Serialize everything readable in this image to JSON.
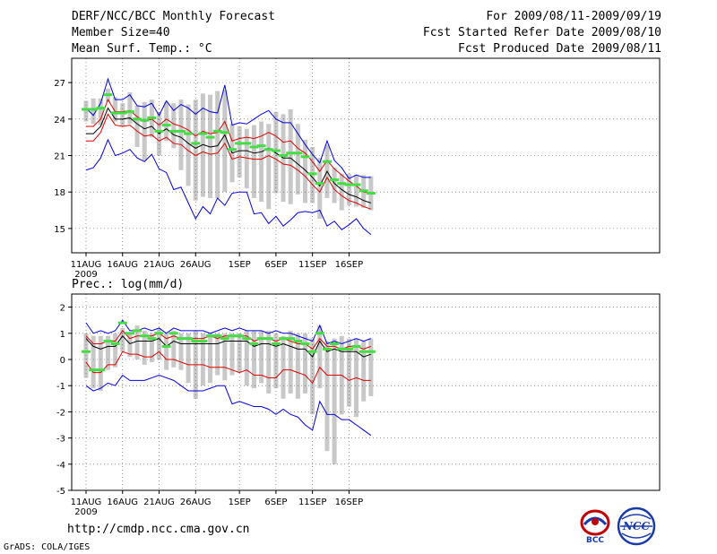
{
  "header": {
    "title": "DERF/NCC/BCC Monthly Forecast",
    "member_size": "Member Size=40",
    "variable": "Mean Surf. Temp.: °C",
    "period": "For 2009/08/11-2009/09/19",
    "refer_date": "Fcst Started Refer Date 2009/08/10",
    "produced_date": "Fcst Produced Date 2009/08/11"
  },
  "footer": {
    "url": "http://cmdp.ncc.cma.gov.cn",
    "credit": "GrADS: COLA/IGES",
    "logo_bcc": "BCC",
    "logo_ncc": "NCC"
  },
  "chart_data": [
    {
      "type": "line",
      "title": "Mean Surf. Temp.: °C",
      "ylabel": "°C",
      "ylim": [
        13,
        29
      ],
      "yticks": [
        15,
        18,
        21,
        24,
        27
      ],
      "x": [
        0,
        1,
        2,
        3,
        4,
        5,
        6,
        7,
        8,
        9,
        10,
        11,
        12,
        13,
        14,
        15,
        16,
        17,
        18,
        19,
        20,
        21,
        22,
        23,
        24,
        25,
        26,
        27,
        28,
        29,
        30,
        31,
        32,
        33,
        34,
        35,
        36,
        37,
        38,
        39
      ],
      "xticks": [
        {
          "x": 0,
          "label": "11AUG"
        },
        {
          "x": 5,
          "label": "16AUG"
        },
        {
          "x": 10,
          "label": "21AUG"
        },
        {
          "x": 15,
          "label": "26AUG"
        },
        {
          "x": 21,
          "label": "1SEP"
        },
        {
          "x": 26,
          "label": "6SEP"
        },
        {
          "x": 31,
          "label": "11SEP"
        },
        {
          "x": 36,
          "label": "16SEP"
        }
      ],
      "year_label": "2009",
      "series": [
        {
          "name": "max",
          "color": "#0000dd",
          "values": [
            19.8,
            20.0,
            20.8,
            22.3,
            21.0,
            21.2,
            21.5,
            20.8,
            20.5,
            21.1,
            19.9,
            19.6,
            18.2,
            18.4,
            17.1,
            15.8,
            16.8,
            16.2,
            17.5,
            16.9,
            17.9,
            18.0,
            18.0,
            16.2,
            16.3,
            15.4,
            16.0,
            15.2,
            15.7,
            16.3,
            16.4,
            16.3,
            16.5,
            15.2,
            15.6,
            14.9,
            15.3,
            15.8,
            15.0,
            14.5
          ]
        },
        {
          "name": "min",
          "color": "#0000dd",
          "values": [
            24.9,
            24.3,
            25.3,
            27.3,
            25.6,
            25.6,
            26.0,
            25.1,
            25.0,
            25.3,
            24.3,
            25.5,
            24.7,
            25.2,
            24.9,
            24.4,
            24.9,
            24.6,
            24.5,
            26.8,
            23.5,
            23.7,
            23.6,
            24.0,
            24.4,
            24.7,
            24.0,
            23.7,
            23.7,
            22.8,
            21.9,
            21.1,
            20.4,
            22.2,
            20.6,
            20.0,
            19.1,
            19.4,
            19.2,
            19.2
          ]
        },
        {
          "name": "upper",
          "color": "#dd0000",
          "values": [
            23.4,
            23.4,
            24.0,
            25.6,
            24.6,
            24.6,
            24.7,
            24.2,
            23.8,
            24.0,
            23.5,
            24.0,
            23.6,
            23.4,
            23.1,
            22.6,
            23.0,
            22.8,
            22.9,
            23.8,
            22.2,
            22.4,
            22.5,
            22.4,
            22.6,
            22.9,
            22.6,
            22.1,
            22.2,
            21.6,
            21.2,
            20.5,
            19.7,
            20.6,
            19.9,
            19.4,
            18.9,
            18.5,
            18.0,
            17.9
          ]
        },
        {
          "name": "mean",
          "color": "#000000",
          "values": [
            22.8,
            22.8,
            23.4,
            24.9,
            24.0,
            24.0,
            24.1,
            23.6,
            23.2,
            23.4,
            22.8,
            23.2,
            22.7,
            22.5,
            22.0,
            21.6,
            21.9,
            21.7,
            21.8,
            22.7,
            21.2,
            21.4,
            21.4,
            21.2,
            21.3,
            21.6,
            21.2,
            20.8,
            20.8,
            20.3,
            19.8,
            19.2,
            18.5,
            19.7,
            18.7,
            18.2,
            17.8,
            17.6,
            17.3,
            17.1
          ]
        },
        {
          "name": "lower",
          "color": "#dd0000",
          "values": [
            22.2,
            22.2,
            22.9,
            24.4,
            23.5,
            23.4,
            23.5,
            23.0,
            22.6,
            22.7,
            22.2,
            22.5,
            22.0,
            21.9,
            21.4,
            21.0,
            21.3,
            21.1,
            21.2,
            22.0,
            20.7,
            20.9,
            20.8,
            20.7,
            20.7,
            21.0,
            20.7,
            20.3,
            20.2,
            19.8,
            19.3,
            18.6,
            18.0,
            19.2,
            18.2,
            17.7,
            17.3,
            17.1,
            16.8,
            16.6
          ]
        },
        {
          "name": "box_low",
          "color": "#c8c8c8",
          "values": [
            23.8,
            23.6,
            23.5,
            25.4,
            23.8,
            23.4,
            23.6,
            21.7,
            20.6,
            22.5,
            21.0,
            22.2,
            21.6,
            19.8,
            18.5,
            17.3,
            17.6,
            17.5,
            17.5,
            18.0,
            18.8,
            19.2,
            18.3,
            17.5,
            17.2,
            16.6,
            17.9,
            17.2,
            17.0,
            17.8,
            17.1,
            17.1,
            15.8,
            17.5,
            17.1,
            16.5,
            16.9,
            16.8,
            16.7,
            16.5
          ]
        },
        {
          "name": "box_high",
          "color": "#c8c8c8",
          "values": [
            25.5,
            25.7,
            25.7,
            26.5,
            25.8,
            25.3,
            26.2,
            25.1,
            25.4,
            25.6,
            24.6,
            25.4,
            25.3,
            25.6,
            25.2,
            25.6,
            26.1,
            26.0,
            26.3,
            26.4,
            23.6,
            23.4,
            23.2,
            23.5,
            23.8,
            23.6,
            24.6,
            24.4,
            24.8,
            23.6,
            22.3,
            21.7,
            20.8,
            21.9,
            20.0,
            19.5,
            19.5,
            19.4,
            19.4,
            19.3
          ]
        },
        {
          "name": "observed",
          "color": "#44dd44",
          "values": [
            24.8,
            24.8,
            24.9,
            26.0,
            24.5,
            24.5,
            24.6,
            24.0,
            23.9,
            24.1,
            23.0,
            23.5,
            23.0,
            23.0,
            22.8,
            22.0,
            22.8,
            22.5,
            23.0,
            22.9,
            21.5,
            22.0,
            22.0,
            21.7,
            21.8,
            21.5,
            21.4,
            21.0,
            21.2,
            21.2,
            20.9,
            19.5,
            18.7,
            20.5,
            19.0,
            18.7,
            18.6,
            18.6,
            18.1,
            17.9
          ]
        }
      ]
    },
    {
      "type": "line",
      "title": "Prec.: log(mm/d)",
      "ylabel": "log(mm/d)",
      "ylim": [
        -5,
        2.5
      ],
      "yticks": [
        2,
        1,
        0,
        -1,
        -2,
        -3,
        -4,
        -5
      ],
      "x": [
        0,
        1,
        2,
        3,
        4,
        5,
        6,
        7,
        8,
        9,
        10,
        11,
        12,
        13,
        14,
        15,
        16,
        17,
        18,
        19,
        20,
        21,
        22,
        23,
        24,
        25,
        26,
        27,
        28,
        29,
        30,
        31,
        32,
        33,
        34,
        35,
        36,
        37,
        38,
        39
      ],
      "xticks": [
        {
          "x": 0,
          "label": "11AUG"
        },
        {
          "x": 5,
          "label": "16AUG"
        },
        {
          "x": 10,
          "label": "21AUG"
        },
        {
          "x": 15,
          "label": "26AUG"
        },
        {
          "x": 21,
          "label": "1SEP"
        },
        {
          "x": 26,
          "label": "6SEP"
        },
        {
          "x": 31,
          "label": "11SEP"
        },
        {
          "x": 36,
          "label": "16SEP"
        }
      ],
      "year_label": "2009",
      "title_label": "Prec.: log(mm/d)",
      "series": [
        {
          "name": "max",
          "color": "#0000dd",
          "values": [
            1.4,
            1.0,
            1.1,
            1.0,
            1.1,
            1.5,
            1.1,
            1.1,
            1.2,
            1.1,
            1.2,
            1.0,
            1.2,
            1.1,
            1.1,
            1.1,
            1.1,
            1.0,
            1.1,
            1.2,
            1.1,
            1.2,
            1.1,
            1.1,
            1.1,
            1.0,
            1.1,
            1.0,
            1.0,
            0.9,
            0.8,
            0.7,
            1.3,
            0.6,
            0.7,
            0.6,
            0.7,
            0.8,
            0.7,
            0.8
          ]
        },
        {
          "name": "min",
          "color": "#0000dd",
          "values": [
            -1.0,
            -1.2,
            -1.1,
            -0.9,
            -1.0,
            -0.6,
            -0.8,
            -0.8,
            -0.8,
            -0.7,
            -0.6,
            -0.7,
            -0.8,
            -1.0,
            -1.2,
            -1.2,
            -1.2,
            -1.1,
            -1.0,
            -1.0,
            -1.7,
            -1.6,
            -1.7,
            -1.8,
            -1.8,
            -1.9,
            -2.1,
            -1.9,
            -2.1,
            -2.2,
            -2.5,
            -2.7,
            -1.6,
            -2.1,
            -2.1,
            -2.3,
            -2.3,
            -2.5,
            -2.7,
            -2.9
          ]
        },
        {
          "name": "upper",
          "color": "#dd0000",
          "values": [
            0.9,
            0.6,
            0.6,
            0.7,
            0.7,
            1.1,
            0.8,
            0.9,
            0.9,
            0.9,
            1.0,
            0.8,
            0.9,
            0.8,
            0.8,
            0.8,
            0.8,
            0.9,
            0.8,
            0.9,
            0.9,
            0.9,
            0.9,
            0.7,
            0.8,
            0.8,
            0.7,
            0.8,
            0.7,
            0.6,
            0.6,
            0.4,
            0.8,
            0.5,
            0.5,
            0.4,
            0.5,
            0.5,
            0.4,
            0.5
          ]
        },
        {
          "name": "mean",
          "color": "#000000",
          "values": [
            0.8,
            0.5,
            0.4,
            0.5,
            0.5,
            0.9,
            0.6,
            0.7,
            0.7,
            0.7,
            0.8,
            0.5,
            0.7,
            0.6,
            0.6,
            0.6,
            0.6,
            0.6,
            0.6,
            0.7,
            0.7,
            0.7,
            0.7,
            0.5,
            0.6,
            0.6,
            0.5,
            0.6,
            0.5,
            0.4,
            0.4,
            0.1,
            0.7,
            0.3,
            0.4,
            0.3,
            0.3,
            0.3,
            0.1,
            0.2
          ]
        },
        {
          "name": "lower",
          "color": "#dd0000",
          "values": [
            -0.1,
            -0.5,
            -0.5,
            -0.2,
            -0.2,
            0.3,
            0.2,
            0.2,
            0.1,
            0.1,
            0.3,
            0.0,
            0.0,
            -0.1,
            -0.2,
            -0.2,
            -0.2,
            -0.3,
            -0.3,
            -0.3,
            -0.4,
            -0.5,
            -0.4,
            -0.6,
            -0.6,
            -0.7,
            -0.7,
            -0.4,
            -0.4,
            -0.5,
            -0.6,
            -0.9,
            -0.3,
            -0.6,
            -0.6,
            -0.6,
            -0.8,
            -0.7,
            -0.8,
            -0.8
          ]
        },
        {
          "name": "box_low",
          "color": "#c8c8c8",
          "values": [
            -0.7,
            -1.1,
            -1.2,
            -0.4,
            -0.3,
            0.3,
            0.1,
            0.0,
            -0.2,
            -0.1,
            0.0,
            -0.4,
            -0.3,
            -0.4,
            -0.9,
            -1.5,
            -1.0,
            -0.9,
            -0.6,
            -0.8,
            -0.6,
            -0.5,
            -1.0,
            -1.1,
            -0.9,
            -1.3,
            -1.1,
            -1.5,
            -1.3,
            -1.5,
            -1.3,
            -2.1,
            -1.1,
            -3.5,
            -4.0,
            -2.1,
            -1.8,
            -2.2,
            -1.6,
            -1.4
          ]
        },
        {
          "name": "box_high",
          "color": "#c8c8c8",
          "values": [
            1.0,
            0.9,
            0.9,
            0.9,
            1.0,
            1.2,
            1.0,
            1.3,
            1.1,
            1.0,
            1.2,
            1.0,
            1.1,
            1.0,
            1.0,
            1.1,
            1.0,
            1.0,
            1.0,
            1.0,
            1.0,
            1.0,
            1.1,
            1.1,
            1.1,
            1.1,
            1.0,
            0.9,
            1.1,
            1.0,
            1.0,
            0.8,
            1.3,
            0.7,
            0.8,
            0.9,
            0.8,
            0.8,
            0.7,
            0.8
          ]
        },
        {
          "name": "observed",
          "color": "#44dd44",
          "values": [
            0.3,
            -0.4,
            -0.4,
            0.7,
            0.6,
            1.4,
            1.0,
            1.1,
            0.9,
            0.8,
            1.0,
            0.5,
            1.0,
            0.8,
            0.8,
            0.7,
            0.7,
            0.9,
            0.9,
            0.8,
            0.9,
            0.9,
            0.8,
            0.6,
            0.8,
            0.8,
            0.6,
            0.8,
            0.8,
            0.7,
            0.6,
            0.3,
            1.0,
            0.4,
            0.6,
            0.4,
            0.4,
            0.5,
            0.3,
            0.3
          ]
        }
      ]
    }
  ]
}
